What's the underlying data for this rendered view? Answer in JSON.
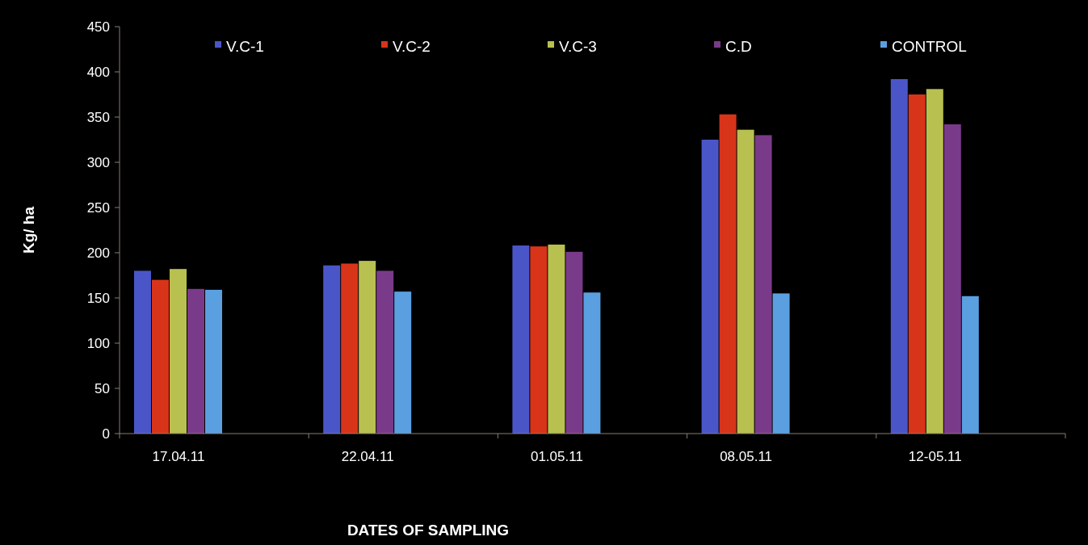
{
  "chart_data": {
    "type": "bar",
    "xlabel": "DATES OF SAMPLING",
    "ylabel": "Kg/ ha",
    "categories": [
      "17.04.11",
      "22.04.11",
      "01.05.11",
      "08.05.11",
      "12-05.11"
    ],
    "series": [
      {
        "name": "V.C-1",
        "color": "#4a56c8",
        "values": [
          180,
          186,
          208,
          325,
          392
        ]
      },
      {
        "name": "V.C-2",
        "color": "#d8341a",
        "values": [
          170,
          188,
          207,
          353,
          375
        ]
      },
      {
        "name": "V.C-3",
        "color": "#b8c050",
        "values": [
          182,
          191,
          209,
          336,
          381
        ]
      },
      {
        "name": "C.D",
        "color": "#7a3a8a",
        "values": [
          160,
          180,
          201,
          330,
          342
        ]
      },
      {
        "name": "CONTROL",
        "color": "#5aa0e0",
        "values": [
          159,
          157,
          156,
          155,
          152
        ]
      }
    ],
    "ylim": [
      0,
      450
    ],
    "yticks": [
      0,
      50,
      100,
      150,
      200,
      250,
      300,
      350,
      400,
      450
    ],
    "grid": false,
    "legend": "top"
  }
}
